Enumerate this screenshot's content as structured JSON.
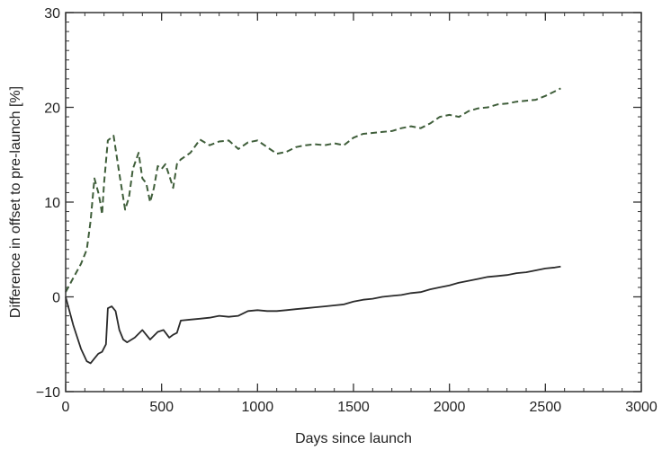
{
  "chart_data": {
    "type": "line",
    "title": "",
    "xlabel": "Days since launch",
    "ylabel": "Difference in offset to pre-launch [%]",
    "xlim": [
      0,
      3000
    ],
    "ylim": [
      -10,
      30
    ],
    "x_ticks": [
      0,
      500,
      1000,
      1500,
      2000,
      2500,
      3000
    ],
    "y_ticks": [
      -10,
      0,
      10,
      20,
      30
    ],
    "x_tick_labels": [
      "0",
      "500",
      "1000",
      "1500",
      "2000",
      "2500",
      "3000"
    ],
    "y_tick_labels": [
      "−10",
      "0",
      "10",
      "20",
      "30"
    ],
    "grid": false,
    "legend": "none",
    "series": [
      {
        "style": "dashed",
        "color": "#3f5e3a",
        "x": [
          0,
          40,
          80,
          110,
          130,
          150,
          170,
          180,
          190,
          200,
          220,
          250,
          280,
          310,
          330,
          350,
          380,
          400,
          420,
          440,
          460,
          480,
          500,
          520,
          540,
          560,
          580,
          600,
          650,
          700,
          750,
          800,
          850,
          900,
          950,
          1000,
          1050,
          1100,
          1150,
          1200,
          1250,
          1300,
          1350,
          1400,
          1450,
          1500,
          1550,
          1600,
          1650,
          1700,
          1750,
          1800,
          1850,
          1900,
          1950,
          2000,
          2050,
          2100,
          2150,
          2200,
          2250,
          2300,
          2350,
          2400,
          2450,
          2500,
          2550,
          2580
        ],
        "y": [
          0.5,
          2.0,
          3.5,
          5.0,
          8.0,
          12.5,
          11.0,
          10.0,
          8.7,
          12.0,
          16.5,
          17.0,
          13.0,
          9.2,
          10.5,
          13.5,
          15.2,
          12.5,
          12.0,
          10.0,
          11.5,
          13.8,
          13.5,
          14.0,
          12.8,
          11.5,
          14.0,
          14.5,
          15.2,
          16.6,
          16.0,
          16.4,
          16.5,
          15.6,
          16.3,
          16.5,
          15.8,
          15.1,
          15.3,
          15.8,
          16.0,
          16.1,
          16.0,
          16.2,
          16.0,
          16.8,
          17.2,
          17.3,
          17.4,
          17.5,
          17.8,
          18.0,
          17.8,
          18.3,
          19.0,
          19.2,
          19.0,
          19.6,
          19.9,
          20.0,
          20.3,
          20.4,
          20.6,
          20.7,
          20.8,
          21.2,
          21.7,
          22.0
        ]
      },
      {
        "style": "solid",
        "color": "#2b2b2b",
        "x": [
          0,
          40,
          80,
          110,
          130,
          150,
          170,
          190,
          210,
          220,
          240,
          260,
          280,
          300,
          320,
          360,
          400,
          440,
          480,
          510,
          540,
          560,
          580,
          600,
          650,
          700,
          750,
          800,
          850,
          900,
          950,
          1000,
          1050,
          1100,
          1150,
          1200,
          1250,
          1300,
          1350,
          1400,
          1450,
          1500,
          1550,
          1600,
          1650,
          1700,
          1750,
          1800,
          1850,
          1900,
          1950,
          2000,
          2050,
          2100,
          2150,
          2200,
          2250,
          2300,
          2350,
          2400,
          2450,
          2500,
          2550,
          2580
        ],
        "y": [
          0,
          -3.0,
          -5.5,
          -6.8,
          -7.0,
          -6.5,
          -6.0,
          -5.8,
          -5.0,
          -1.2,
          -1.0,
          -1.5,
          -3.5,
          -4.5,
          -4.8,
          -4.3,
          -3.5,
          -4.5,
          -3.7,
          -3.5,
          -4.3,
          -4.0,
          -3.8,
          -2.5,
          -2.4,
          -2.3,
          -2.2,
          -2.0,
          -2.1,
          -2.0,
          -1.5,
          -1.4,
          -1.5,
          -1.5,
          -1.4,
          -1.3,
          -1.2,
          -1.1,
          -1.0,
          -0.9,
          -0.8,
          -0.5,
          -0.3,
          -0.2,
          0.0,
          0.1,
          0.2,
          0.4,
          0.5,
          0.8,
          1.0,
          1.2,
          1.5,
          1.7,
          1.9,
          2.1,
          2.2,
          2.3,
          2.5,
          2.6,
          2.8,
          3.0,
          3.1,
          3.2
        ]
      }
    ]
  }
}
